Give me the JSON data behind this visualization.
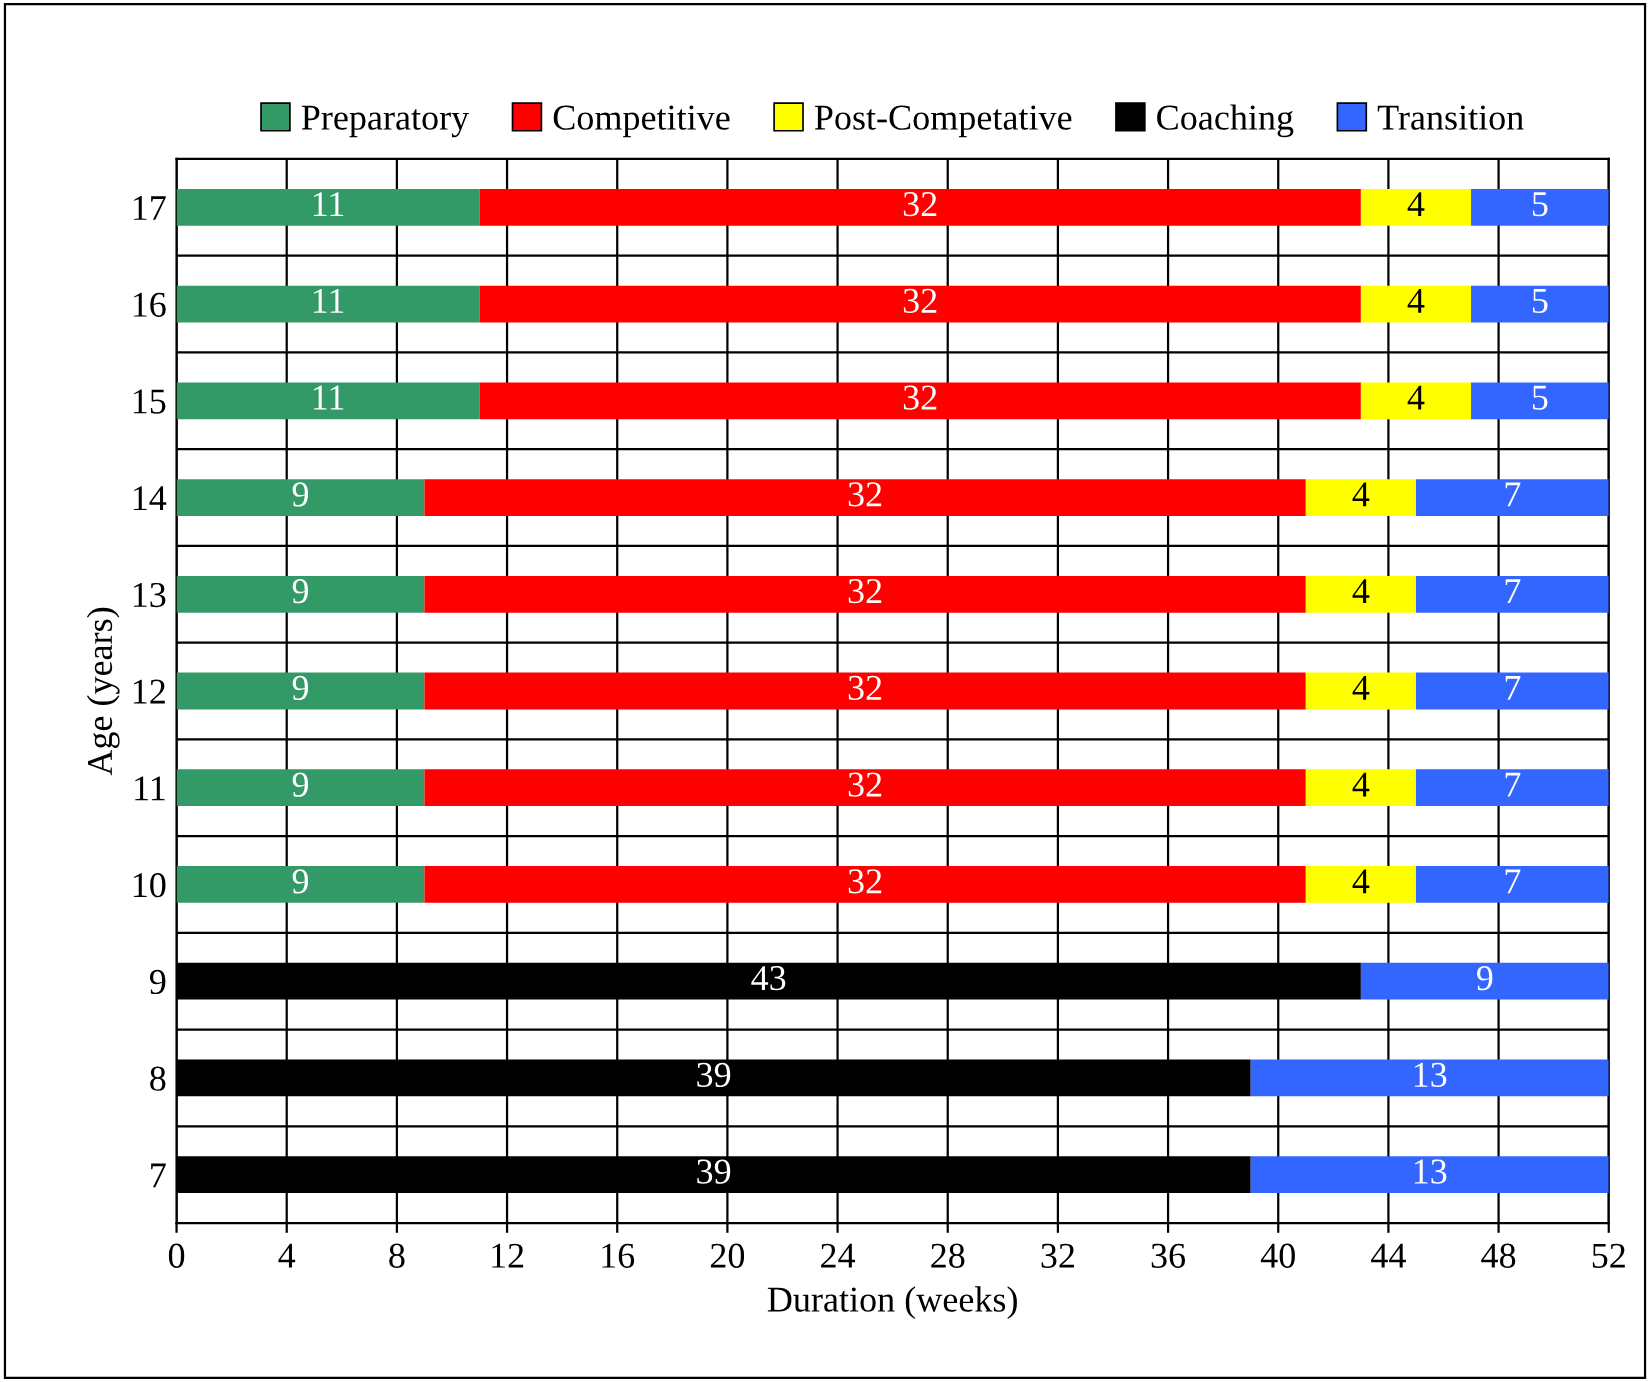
{
  "chart_data": {
    "type": "bar",
    "orientation": "horizontal",
    "stacked": true,
    "data_labels": true,
    "grid": true,
    "legend": "top",
    "xlabel": "Duration (weeks)",
    "ylabel": "Age (years)",
    "categories": [
      "17",
      "16",
      "15",
      "14",
      "13",
      "12",
      "11",
      "10",
      "9",
      "8",
      "7"
    ],
    "xlim": [
      0,
      52
    ],
    "xticks": [
      0,
      4,
      8,
      12,
      16,
      20,
      24,
      28,
      32,
      36,
      40,
      44,
      48,
      52
    ],
    "series": [
      {
        "name": "Preparatory",
        "color": "#339966",
        "values": [
          11,
          11,
          11,
          9,
          9,
          9,
          9,
          9,
          null,
          null,
          null
        ]
      },
      {
        "name": "Competitive",
        "color": "#ff0000",
        "values": [
          32,
          32,
          32,
          32,
          32,
          32,
          32,
          32,
          null,
          null,
          null
        ]
      },
      {
        "name": "Post-Competative",
        "color": "#ffff00",
        "values": [
          4,
          4,
          4,
          4,
          4,
          4,
          4,
          4,
          null,
          null,
          null
        ]
      },
      {
        "name": "Coaching",
        "color": "#000000",
        "values": [
          null,
          null,
          null,
          null,
          null,
          null,
          null,
          null,
          43,
          39,
          39
        ]
      },
      {
        "name": "Transition",
        "color": "#3366ff",
        "values": [
          5,
          5,
          5,
          7,
          7,
          7,
          7,
          7,
          9,
          13,
          13
        ]
      }
    ]
  }
}
